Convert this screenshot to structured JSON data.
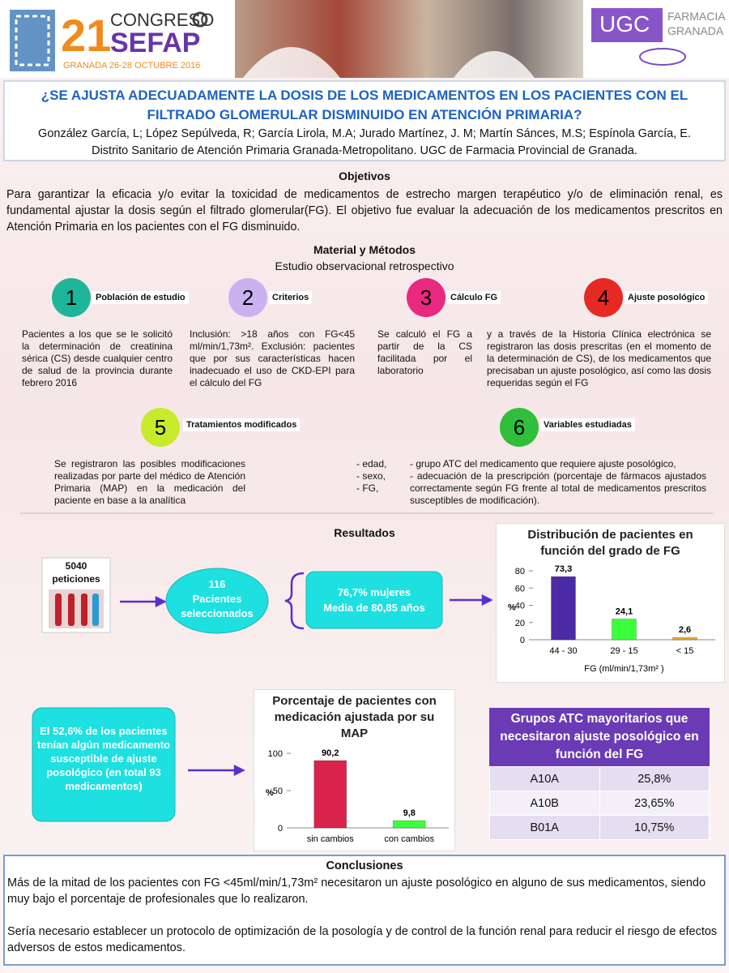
{
  "header": {
    "congress_number": "21",
    "congress_word": "CONGRESO",
    "congress_name": "SEFAP",
    "congress_place": "GRANADA 26-28 OCTUBRE 2016",
    "ugc": "UGC",
    "farmacia": "FARMACIA",
    "granada": "GRANADA"
  },
  "title": "¿SE AJUSTA ADECUADAMENTE LA DOSIS DE LOS MEDICAMENTOS EN LOS PACIENTES CON EL FILTRADO GLOMERULAR DISMINUIDO EN ATENCIÓN PRIMARIA?",
  "authors": "González García, L; López Sepúlveda, R;  García Lirola, M.A; Jurado Martínez, J. M; Martín Sánces, M.S; Espínola García, E.",
  "affiliation": "Distrito Sanitario de Atención Primaria Granada-Metropolitano. UGC de Farmacia Provincial de Granada.",
  "objectives": {
    "heading": "Objetivos",
    "text": "Para garantizar la eficacia y/o evitar la toxicidad de medicamentos de estrecho margen terapéutico y/o de eliminación renal, es fundamental ajustar la dosis según el filtrado glomerular(FG). El objetivo fue evaluar la adecuación de los medicamentos prescritos en Atención Primaria en los pacientes con el FG disminuido."
  },
  "methods": {
    "heading": "Material y Métodos",
    "subtitle": "Estudio observacional retrospectivo",
    "steps": [
      {
        "number": "1",
        "label": "Población de estudio",
        "text": "Pacientes a los que se le solicitó la determinación de creatinina sérica (CS) desde cualquier centro de salud de la provincia durante febrero 2016"
      },
      {
        "number": "2",
        "label": "Criterios",
        "text": "Inclusión: >18 años con FG<45 ml/min/1,73m². Exclusión: pacientes que por sus características hacen inadecuado el uso de CKD-EPI para el cálculo del FG"
      },
      {
        "number": "3",
        "label": "Cálculo FG",
        "text": "Se calculó el FG a partir de la CS facilitada por el laboratorio"
      },
      {
        "number": "4",
        "label": "Ajuste posológico",
        "text": "y a través de la Historia Clínica electrónica se registraron las dosis prescritas (en el momento de la determinación de CS), de los medicamentos que precisaban un ajuste posológico, así como las dosis requeridas según el FG"
      },
      {
        "number": "5",
        "label": "Tratamientos modificados",
        "text": "Se registraron las posibles modificaciones realizadas por parte del médico de Atención Primaria (MAP) en la medicación del paciente en base a la analítica"
      },
      {
        "number": "6",
        "label": "Variables estudiadas",
        "variables": [
          "-   edad,",
          "-   sexo,",
          "-   FG,"
        ],
        "details": [
          "-   grupo ATC del medicamento que requiere ajuste posológico,",
          "-   adecuación de la prescripción (porcentaje de fármacos ajustados correctamente según FG frente al total de medicamentos prescritos susceptibles de modificación)."
        ]
      }
    ]
  },
  "results": {
    "heading": "Resultados",
    "requests": {
      "count": "5040",
      "label": "peticiones"
    },
    "patients": {
      "count": "116",
      "label": "Pacientes seleccionados"
    },
    "demographics": [
      "76,7% mujeres",
      "Media de 80,85 años"
    ],
    "note": "El 52,6% de los pacientes tenían algún medicamento susceptible de ajuste posológico (en total 93 medicamentos)"
  },
  "chart_data": [
    {
      "type": "bar",
      "title": "Distribución de pacientes en función del grado de FG",
      "categories": [
        "44 - 30",
        "29 - 15",
        "< 15"
      ],
      "values": [
        73.3,
        24.1,
        2.6
      ],
      "value_labels": [
        "73,3",
        "24,1",
        "2,6"
      ],
      "colors": [
        "#4b2aa6",
        "#3cff3c",
        "#f2a22c"
      ],
      "ylabel": "%",
      "xlabel": "FG (ml/min/1,73m² )",
      "ylim": [
        0,
        80
      ],
      "yticks": [
        0,
        20,
        40,
        60,
        80
      ]
    },
    {
      "type": "bar",
      "title": "Porcentaje de pacientes con medicación ajustada por su MAP",
      "categories": [
        "sin cambios",
        "con cambios"
      ],
      "values": [
        90.2,
        9.8
      ],
      "value_labels": [
        "90,2",
        "9,8"
      ],
      "colors": [
        "#d8244c",
        "#3cff3c"
      ],
      "ylabel": "%",
      "ylim": [
        0,
        100
      ],
      "yticks": [
        0,
        50,
        100
      ]
    }
  ],
  "table": {
    "title": "Grupos ATC mayoritarios que necesitaron ajuste posológico en función del FG",
    "rows": [
      [
        "A10A",
        "25,8%"
      ],
      [
        "A10B",
        "23,65%"
      ],
      [
        "B01A",
        "10,75%"
      ]
    ]
  },
  "conclusions": {
    "heading": "Conclusiones",
    "paragraphs": [
      "Más de la mitad de los pacientes con FG <45ml/min/1,73m² necesitaron un ajuste posológico en alguno de sus medicamentos, siendo muy bajo el porcentaje de profesionales que lo realizaron.",
      "Sería necesario establecer un protocolo de optimización de la posología y de control de la función renal para reducir el riesgo de efectos adversos de estos medicamentos."
    ]
  }
}
